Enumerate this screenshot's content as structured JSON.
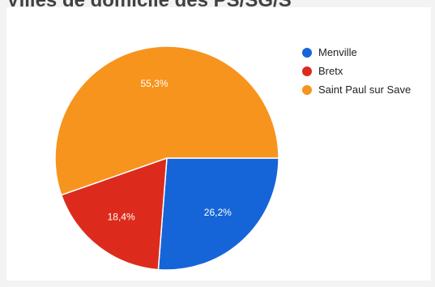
{
  "chart_data": {
    "type": "pie",
    "title": "Villes de domicile des PS/SG/S",
    "slices": [
      {
        "label": "Menville",
        "value": 26.2,
        "display": "26,2%",
        "color": "#1565d8"
      },
      {
        "label": "Bretx",
        "value": 18.4,
        "display": "18,4%",
        "color": "#dc2b1c"
      },
      {
        "label": "Saint Paul sur Save",
        "value": 55.3,
        "display": "55,3%",
        "color": "#f7941d"
      }
    ],
    "legend_position": "right"
  }
}
